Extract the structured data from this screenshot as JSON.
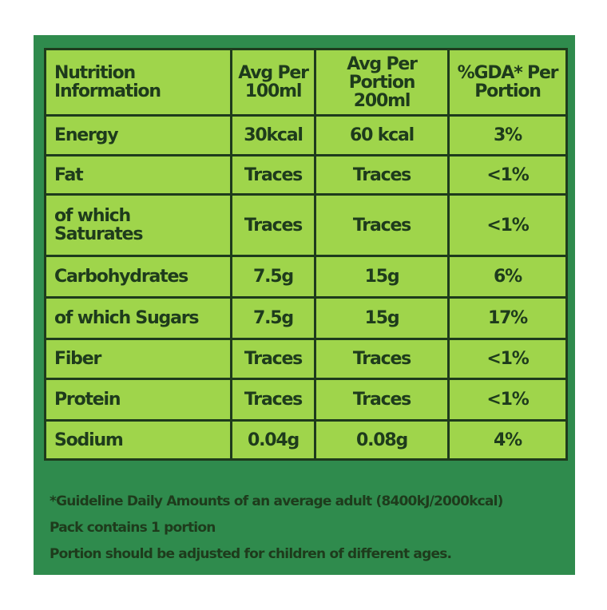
{
  "table": {
    "header": [
      [
        "Nutrition",
        "Information"
      ],
      [
        "Avg Per",
        "100ml"
      ],
      [
        "Avg Per",
        "Portion 200ml"
      ],
      [
        "%GDA* Per",
        "Portion"
      ]
    ],
    "rows": [
      [
        [
          "Energy"
        ],
        [
          "30kcal"
        ],
        [
          "60 kcal"
        ],
        [
          "3%"
        ]
      ],
      [
        [
          "Fat"
        ],
        [
          "Traces"
        ],
        [
          "Traces"
        ],
        [
          "<1%"
        ]
      ],
      [
        [
          "of which",
          "Saturates"
        ],
        [
          "Traces"
        ],
        [
          "Traces"
        ],
        [
          "<1%"
        ]
      ],
      [
        [
          "Carbohydrates"
        ],
        [
          "7.5g"
        ],
        [
          "15g"
        ],
        [
          "6%"
        ]
      ],
      [
        [
          "of which Sugars"
        ],
        [
          "7.5g"
        ],
        [
          "15g"
        ],
        [
          "17%"
        ]
      ],
      [
        [
          "Fiber"
        ],
        [
          "Traces"
        ],
        [
          "Traces"
        ],
        [
          "<1%"
        ]
      ],
      [
        [
          "Protein"
        ],
        [
          "Traces"
        ],
        [
          "Traces"
        ],
        [
          "<1%"
        ]
      ],
      [
        [
          "Sodium"
        ],
        [
          "0.04g"
        ],
        [
          "0.08g"
        ],
        [
          "4%"
        ]
      ]
    ]
  },
  "footer": {
    "notes": [
      "*Guideline Daily Amounts of an average adult (8400kJ/2000kcal)",
      "Pack contains 1 portion",
      "Portion should be adjusted for children of different ages."
    ]
  }
}
